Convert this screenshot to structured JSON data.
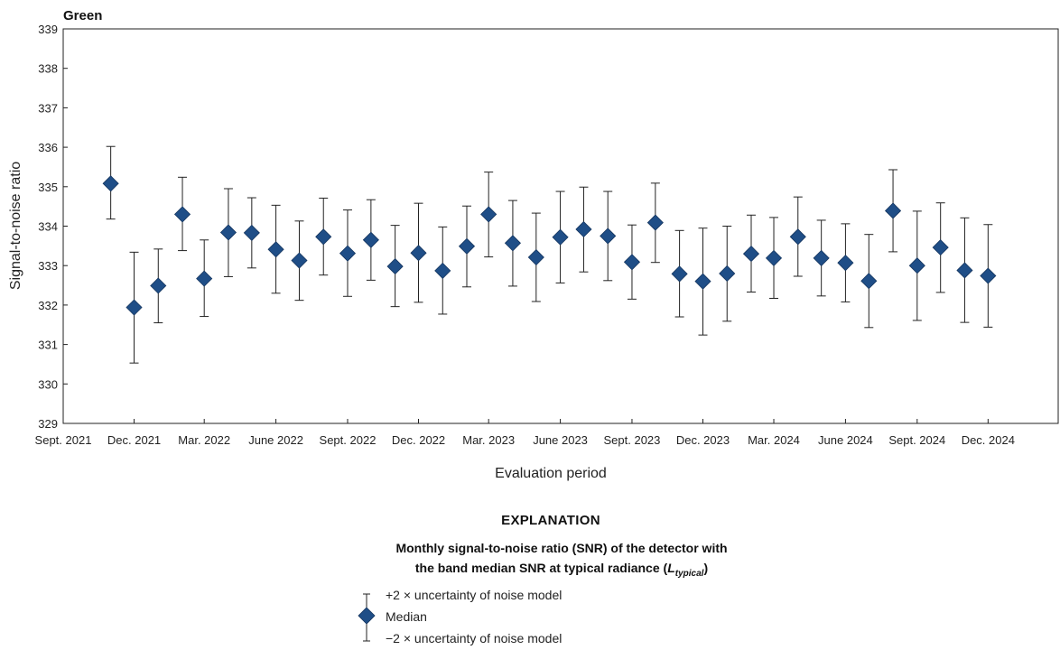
{
  "chart_data": {
    "type": "scatter",
    "title": "Green",
    "xlabel": "Evaluation period",
    "ylabel": "Signal-to-noise ratio",
    "ylim": [
      329,
      339
    ],
    "yticks": [
      329,
      330,
      331,
      332,
      333,
      334,
      335,
      336,
      337,
      338,
      339
    ],
    "xlim": [
      "2021-09-01",
      "2025-03-01"
    ],
    "xtick_labels": [
      "Sept. 2021",
      "Dec. 2021",
      "Mar. 2022",
      "June 2022",
      "Sept. 2022",
      "Dec. 2022",
      "Mar. 2023",
      "June 2023",
      "Sept. 2023",
      "Dec. 2023",
      "Mar. 2024",
      "June 2024",
      "Sept. 2024",
      "Dec. 2024"
    ],
    "xtick_dates": [
      "2021-09-01",
      "2021-12-01",
      "2022-03-01",
      "2022-06-01",
      "2022-09-01",
      "2022-12-01",
      "2023-03-01",
      "2023-06-01",
      "2023-09-01",
      "2023-12-01",
      "2024-03-01",
      "2024-06-01",
      "2024-09-01",
      "2024-12-01"
    ],
    "grid": false,
    "series": [
      {
        "name": "Median",
        "color": "#1f4e87",
        "marker": "diamond",
        "points": [
          {
            "x": "2021-11-01",
            "y": 335.08,
            "lo": 334.18,
            "hi": 336.02
          },
          {
            "x": "2021-12-01",
            "y": 331.94,
            "lo": 330.53,
            "hi": 333.34
          },
          {
            "x": "2022-01-01",
            "y": 332.49,
            "lo": 331.55,
            "hi": 333.42
          },
          {
            "x": "2022-02-01",
            "y": 334.3,
            "lo": 333.38,
            "hi": 335.24
          },
          {
            "x": "2022-03-01",
            "y": 332.67,
            "lo": 331.71,
            "hi": 333.65
          },
          {
            "x": "2022-04-01",
            "y": 333.84,
            "lo": 332.72,
            "hi": 334.95
          },
          {
            "x": "2022-05-01",
            "y": 333.83,
            "lo": 332.94,
            "hi": 334.72
          },
          {
            "x": "2022-06-01",
            "y": 333.41,
            "lo": 332.3,
            "hi": 334.53
          },
          {
            "x": "2022-07-01",
            "y": 333.13,
            "lo": 332.12,
            "hi": 334.13
          },
          {
            "x": "2022-08-01",
            "y": 333.73,
            "lo": 332.76,
            "hi": 334.71
          },
          {
            "x": "2022-09-01",
            "y": 333.31,
            "lo": 332.22,
            "hi": 334.41
          },
          {
            "x": "2022-10-01",
            "y": 333.65,
            "lo": 332.63,
            "hi": 334.67
          },
          {
            "x": "2022-11-01",
            "y": 332.98,
            "lo": 331.96,
            "hi": 334.02
          },
          {
            "x": "2022-12-01",
            "y": 333.32,
            "lo": 332.07,
            "hi": 334.58
          },
          {
            "x": "2023-01-01",
            "y": 332.87,
            "lo": 331.77,
            "hi": 333.98
          },
          {
            "x": "2023-02-01",
            "y": 333.49,
            "lo": 332.46,
            "hi": 334.51
          },
          {
            "x": "2023-03-01",
            "y": 334.3,
            "lo": 333.22,
            "hi": 335.37
          },
          {
            "x": "2023-04-01",
            "y": 333.57,
            "lo": 332.48,
            "hi": 334.65
          },
          {
            "x": "2023-05-01",
            "y": 333.21,
            "lo": 332.09,
            "hi": 334.33
          },
          {
            "x": "2023-06-01",
            "y": 333.72,
            "lo": 332.56,
            "hi": 334.88
          },
          {
            "x": "2023-07-01",
            "y": 333.92,
            "lo": 332.84,
            "hi": 334.99
          },
          {
            "x": "2023-08-01",
            "y": 333.75,
            "lo": 332.62,
            "hi": 334.88
          },
          {
            "x": "2023-09-01",
            "y": 333.09,
            "lo": 332.15,
            "hi": 334.03
          },
          {
            "x": "2023-10-01",
            "y": 334.09,
            "lo": 333.08,
            "hi": 335.09
          },
          {
            "x": "2023-11-01",
            "y": 332.79,
            "lo": 331.7,
            "hi": 333.89
          },
          {
            "x": "2023-12-01",
            "y": 332.6,
            "lo": 331.24,
            "hi": 333.95
          },
          {
            "x": "2024-01-01",
            "y": 332.8,
            "lo": 331.59,
            "hi": 334.0
          },
          {
            "x": "2024-02-01",
            "y": 333.3,
            "lo": 332.33,
            "hi": 334.28
          },
          {
            "x": "2024-03-01",
            "y": 333.19,
            "lo": 332.17,
            "hi": 334.22
          },
          {
            "x": "2024-04-01",
            "y": 333.73,
            "lo": 332.73,
            "hi": 334.74
          },
          {
            "x": "2024-05-01",
            "y": 333.19,
            "lo": 332.23,
            "hi": 334.15
          },
          {
            "x": "2024-06-01",
            "y": 333.07,
            "lo": 332.08,
            "hi": 334.06
          },
          {
            "x": "2024-07-01",
            "y": 332.61,
            "lo": 331.43,
            "hi": 333.79
          },
          {
            "x": "2024-08-01",
            "y": 334.39,
            "lo": 333.35,
            "hi": 335.43
          },
          {
            "x": "2024-09-01",
            "y": 333.0,
            "lo": 331.61,
            "hi": 334.38
          },
          {
            "x": "2024-10-01",
            "y": 333.46,
            "lo": 332.32,
            "hi": 334.59
          },
          {
            "x": "2024-11-01",
            "y": 332.88,
            "lo": 331.56,
            "hi": 334.21
          },
          {
            "x": "2024-12-01",
            "y": 332.74,
            "lo": 331.44,
            "hi": 334.04
          }
        ]
      }
    ]
  },
  "explanation": {
    "heading": "EXPLANATION",
    "line1": "Monthly signal-to-noise ratio (SNR) of the detector with",
    "line2_prefix": "the band median SNR at typical radiance (",
    "line2_symbol": "L",
    "line2_subscript": "typical",
    "line2_suffix": ")",
    "legend_upper": "+2 × uncertainty of noise model",
    "legend_median": "Median",
    "legend_lower": "−2 × uncertainty of noise model"
  }
}
